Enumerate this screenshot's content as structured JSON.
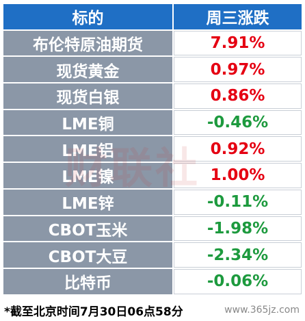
{
  "table": {
    "header": [
      "标的",
      "周三涨跌"
    ],
    "rows": [
      [
        "布伦特原油期货",
        "7.91%"
      ],
      [
        "现货黄金",
        "0.97%"
      ],
      [
        "现货白银",
        "0.86%"
      ],
      [
        "LME铜",
        "-0.46%"
      ],
      [
        "LME铝",
        "0.92%"
      ],
      [
        "LME镍",
        "1.00%"
      ],
      [
        "LME锌",
        "-0.11%"
      ],
      [
        "CBOT玉米",
        "-1.98%"
      ],
      [
        "CBOT大豆",
        "-2.34%"
      ],
      [
        "比特币",
        "-0.06%"
      ]
    ]
  },
  "watermark": "财联社",
  "footer": {
    "note": "*截至北京时间7月30日06点58分",
    "source": "www.365jz.com"
  }
}
